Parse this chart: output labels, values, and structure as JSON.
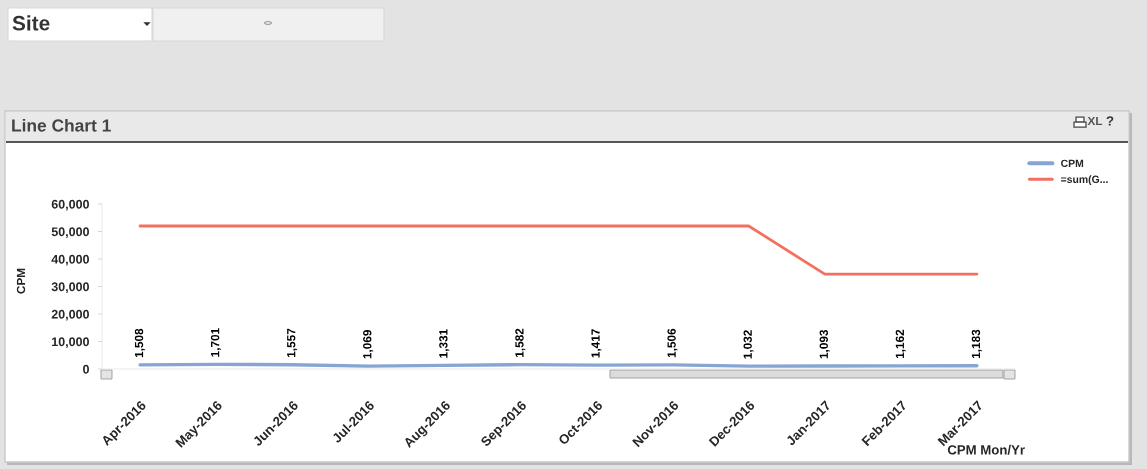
{
  "chart_data": {
    "type": "line",
    "title": "Line Chart 1",
    "xlabel": "CPM Mon/Yr",
    "ylabel": "CPM",
    "categories": [
      "Apr-2016",
      "May-2016",
      "Jun-2016",
      "Jul-2016",
      "Aug-2016",
      "Sep-2016",
      "Oct-2016",
      "Nov-2016",
      "Dec-2016",
      "Jan-2017",
      "Feb-2017",
      "Mar-2017"
    ],
    "series": [
      {
        "name": "CPM",
        "color": "#86a5d3",
        "values": [
          1508,
          1701,
          1557,
          1069,
          1331,
          1582,
          1417,
          1506,
          1032,
          1093,
          1162,
          1183
        ],
        "value_labels": [
          "1,508",
          "1,701",
          "1,557",
          "1,069",
          "1,331",
          "1,582",
          "1,417",
          "1,506",
          "1,032",
          "1,093",
          "1,162",
          "1,183"
        ]
      },
      {
        "name": "=sum(G...",
        "color": "#f4705e",
        "values": [
          52000,
          52000,
          52000,
          52000,
          52000,
          52000,
          52000,
          52000,
          52000,
          34500,
          34500,
          34500
        ]
      }
    ],
    "ylim": [
      0,
      60000
    ],
    "yticks": [
      0,
      {
        "value": 10000,
        "label": "10,000"
      },
      {
        "value": 20000,
        "label": "20,000"
      },
      {
        "value": 30000,
        "label": "30,000"
      },
      {
        "value": 40000,
        "label": "40,000"
      },
      {
        "value": 50000,
        "label": "50,000"
      },
      {
        "value": 60000,
        "label": "60,000"
      }
    ],
    "legend": "top right",
    "annotations": [
      "Site",
      "XL",
      "?"
    ]
  }
}
